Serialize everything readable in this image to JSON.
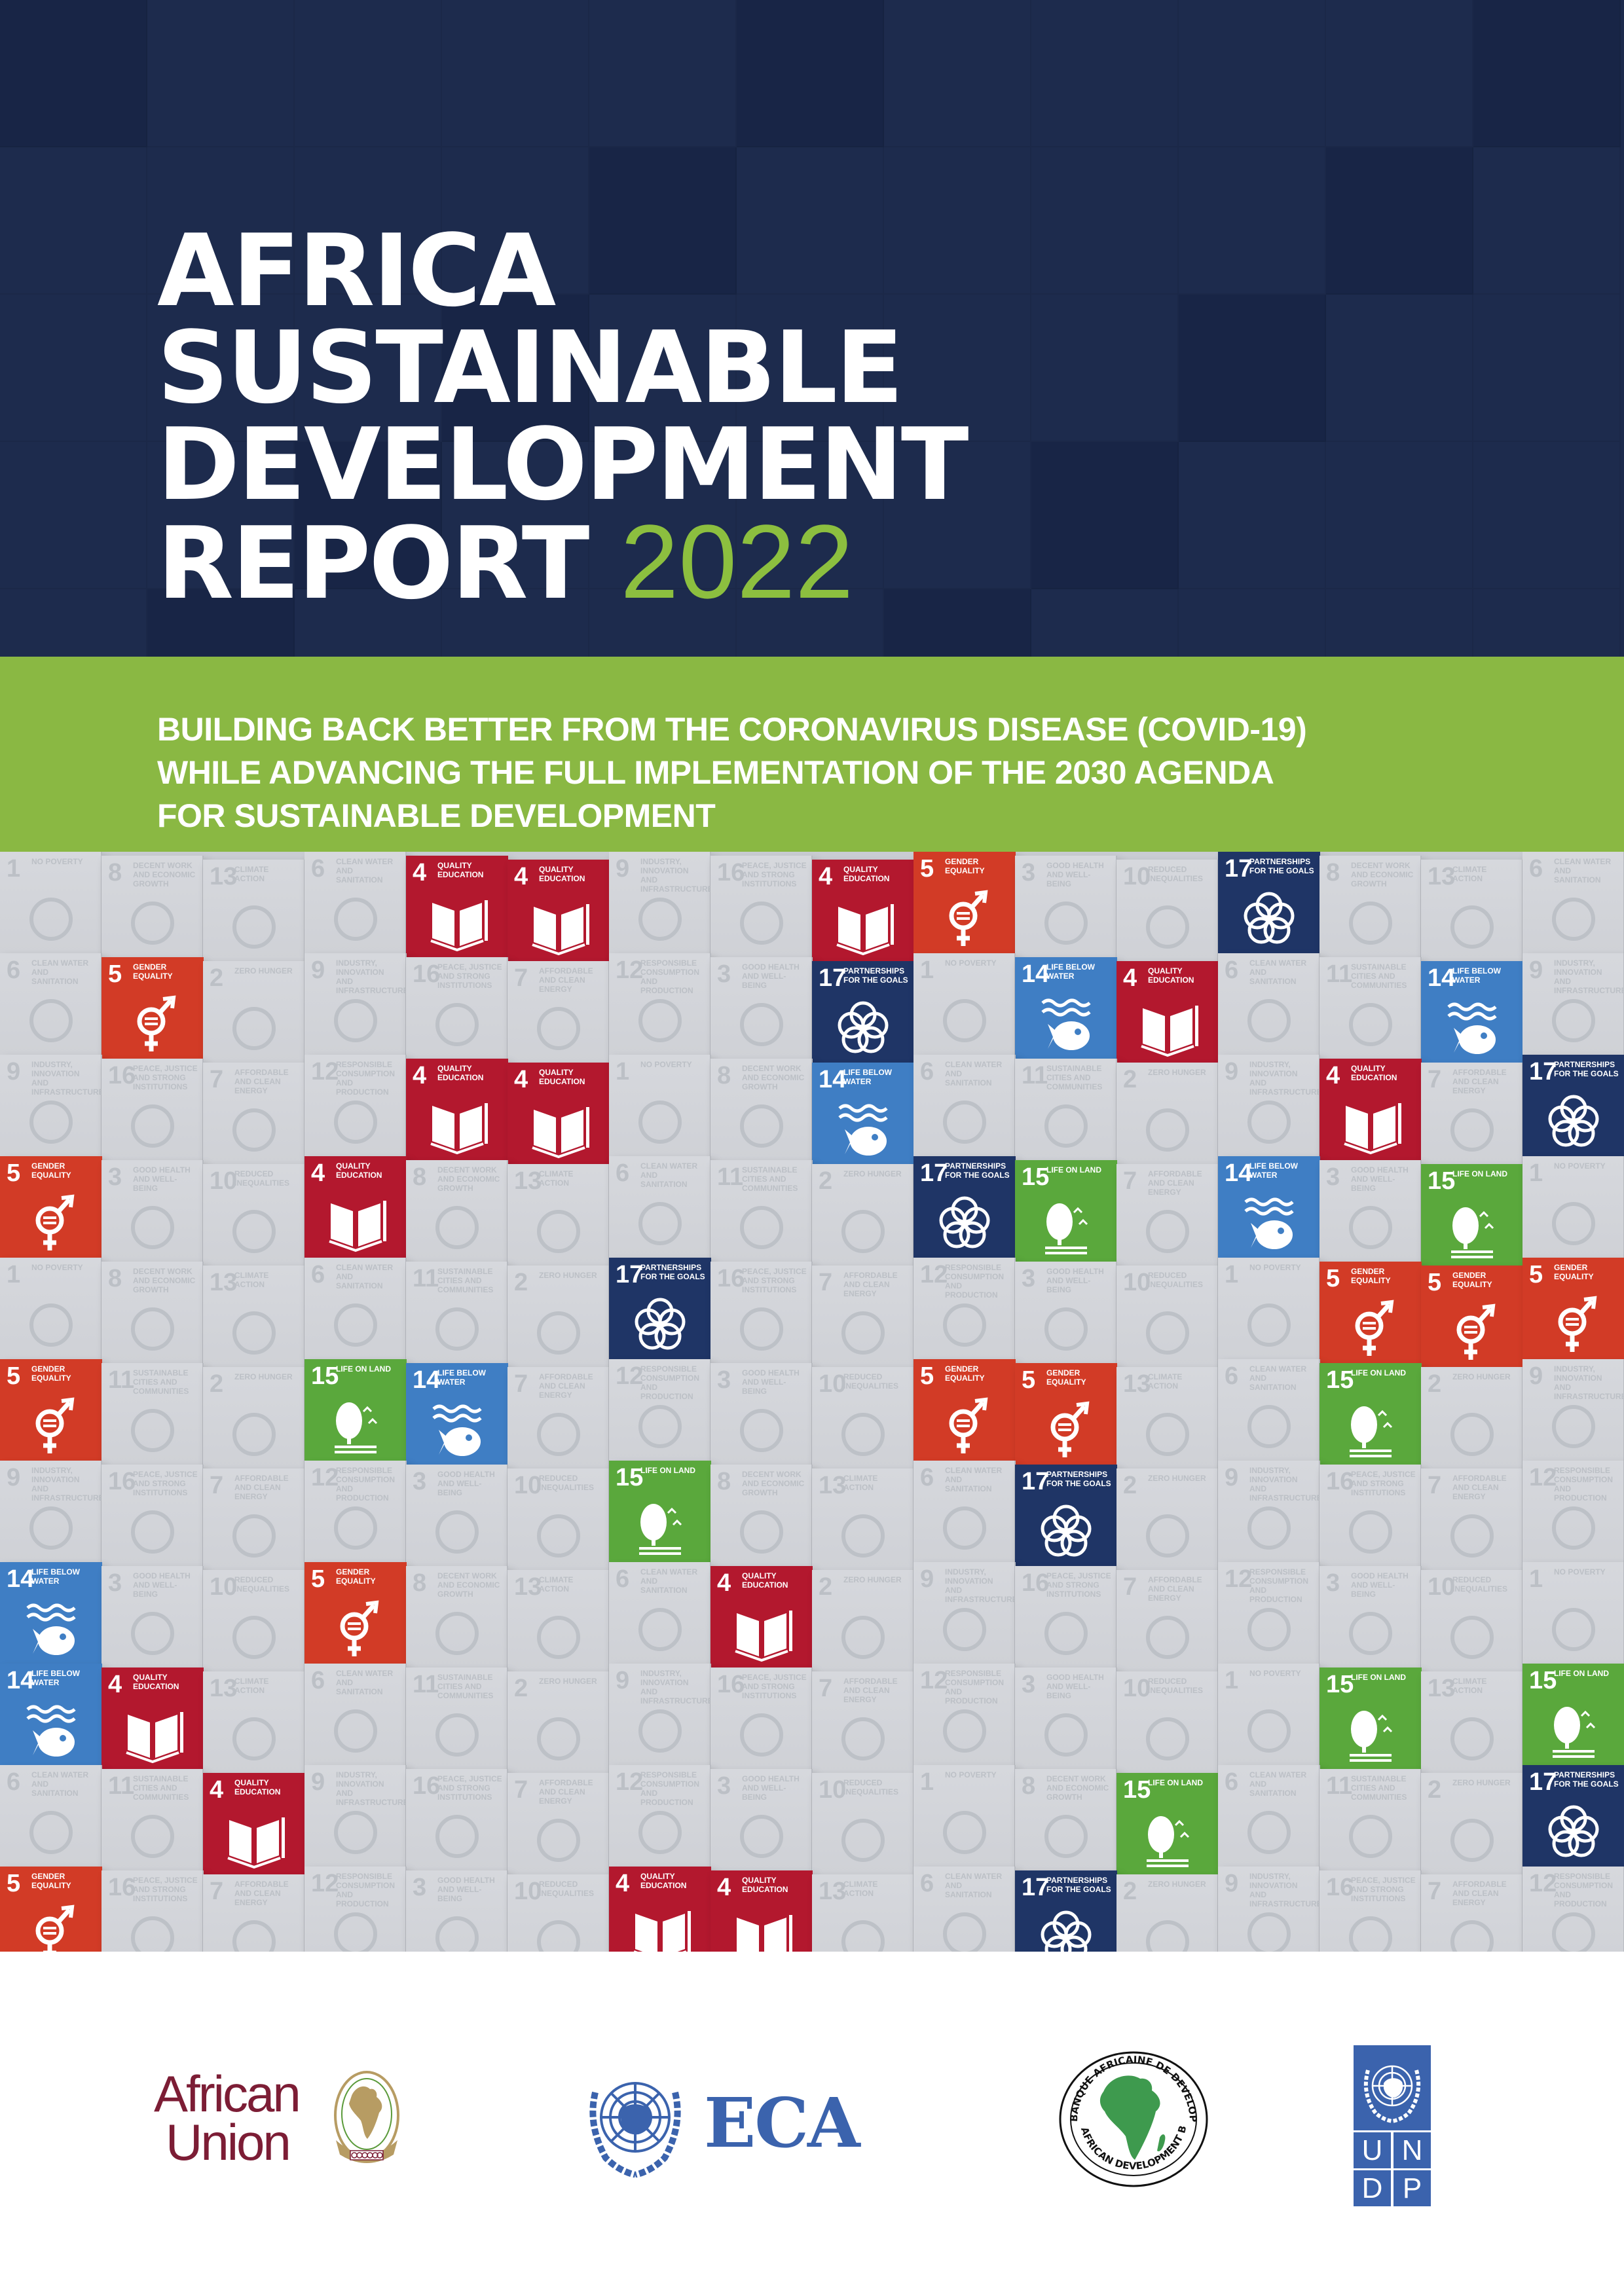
{
  "cover": {
    "title_lines": [
      "AFRICA",
      "SUSTAINABLE",
      "DEVELOPMENT",
      "REPORT"
    ],
    "year": "2022",
    "subtitle_lines": [
      "BUILDING BACK BETTER FROM THE CORONAVIRUS DISEASE (COVID-19)",
      "WHILE ADVANCING THE FULL IMPLEMENTATION OF THE 2030 AGENDA",
      "FOR SUSTAINABLE DEVELOPMENT"
    ],
    "colors": {
      "navy": "#1c2a4c",
      "green_band": "#8ab843",
      "year_green": "#8cbf3f"
    }
  },
  "sdg_tiles": {
    "legend": {
      "4": {
        "number": "4",
        "label": "Quality Education",
        "color": "#b3182e",
        "icon": "book-pencil-icon"
      },
      "5": {
        "number": "5",
        "label": "Gender Equality",
        "color": "#d23b26",
        "icon": "gender-equality-icon"
      },
      "14": {
        "number": "14",
        "label": "Life Below Water",
        "color": "#3f7ec4",
        "icon": "fish-waves-icon"
      },
      "15": {
        "number": "15",
        "label": "Life On Land",
        "color": "#5aa83c",
        "icon": "tree-birds-icon"
      },
      "17": {
        "number": "17",
        "label": "Partnerships For The Goals",
        "color": "#1f3566",
        "icon": "partnership-rings-icon"
      }
    },
    "grey_labels": [
      {
        "number": "1",
        "label": "No Poverty"
      },
      {
        "number": "2",
        "label": "Zero Hunger"
      },
      {
        "number": "3",
        "label": "Good Health and Well-Being"
      },
      {
        "number": "6",
        "label": "Clean Water and Sanitation"
      },
      {
        "number": "7",
        "label": "Affordable and Clean Energy"
      },
      {
        "number": "8",
        "label": "Decent Work and Economic Growth"
      },
      {
        "number": "9",
        "label": "Industry, Innovation and Infrastructure"
      },
      {
        "number": "10",
        "label": "Reduced Inequalities"
      },
      {
        "number": "11",
        "label": "Sustainable Cities and Communities"
      },
      {
        "number": "12",
        "label": "Responsible Consumption and Production"
      },
      {
        "number": "13",
        "label": "Climate Action"
      },
      {
        "number": "16",
        "label": "Peace, Justice and Strong Institutions"
      }
    ]
  },
  "logos": {
    "african_union": {
      "line1": "African",
      "line2": "Union",
      "color": "#7c1d35"
    },
    "eca": {
      "text": "ECA",
      "color": "#3b63ad"
    },
    "afdb": {
      "ring_top": "BANQUE AFRICAINE DE DEVELOPPEMENT",
      "ring_bottom": "AFRICAN DEVELOPMENT BANK",
      "map_color": "#3e9a4e"
    },
    "undp": {
      "letters": [
        "U",
        "N",
        "D",
        "P"
      ],
      "color": "#3b63ad"
    }
  }
}
